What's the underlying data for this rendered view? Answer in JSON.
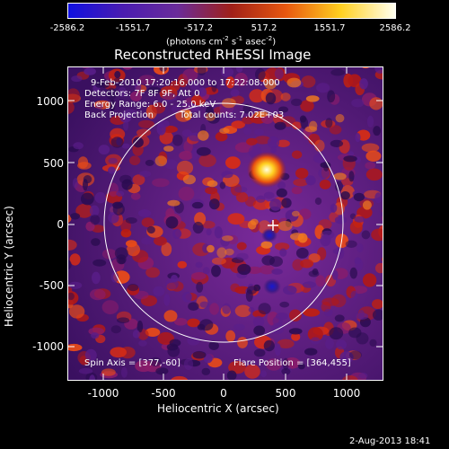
{
  "colorbar": {
    "ticks": [
      "-2586.2",
      "-1551.7",
      "-517.2",
      "517.2",
      "1551.7",
      "2586.2"
    ],
    "units_prefix": "(photons cm",
    "units_sup1": "-2",
    "units_mid": " s",
    "units_sup2": "-1",
    "units_mid2": " asec",
    "units_sup3": "-2",
    "units_suffix": ")",
    "colors": [
      "#1010e0",
      "#4a1cb0",
      "#6a2c9a",
      "#a02018",
      "#e85810",
      "#ffd020",
      "#fffff0"
    ]
  },
  "title": "Reconstructed RHESSI Image",
  "info": {
    "line1": "9-Feb-2010 17:20:16.000 to 17:22:08.000",
    "line2": "Detectors: 7F 8F 9F, Att 0",
    "line3": "Energy Range: 6.0 - 25.0 keV",
    "line4a": "Back Projection",
    "line4b": "Total counts: 7.02E+03"
  },
  "bottom_info": {
    "spin_axis": "Spin Axis = [377,-60]",
    "flare_position": "Flare Position = [364,455]"
  },
  "axes": {
    "ylabel": "Heliocentric Y (arcsec)",
    "xlabel": "Heliocentric X (arcsec)",
    "yticks": [
      "1000",
      "500",
      "0",
      "-500",
      "-1000"
    ],
    "xticks": [
      "-1000",
      "-500",
      "0",
      "500",
      "1000"
    ]
  },
  "timestamp": "2-Aug-2013 18:41"
}
